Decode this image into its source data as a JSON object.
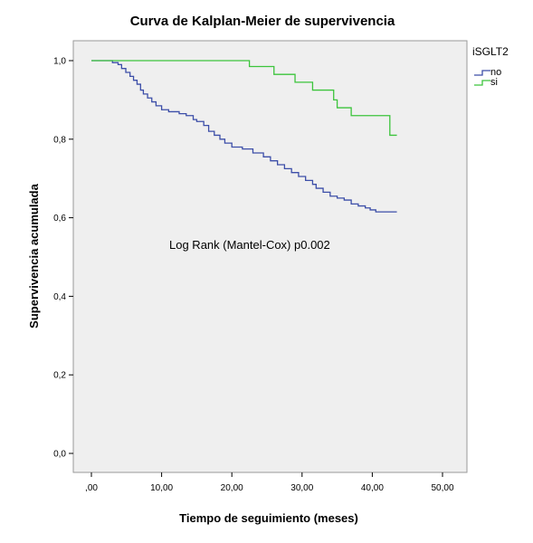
{
  "chart_data": {
    "type": "line",
    "title": "Curva de Kalplan-Meier de supervivencia",
    "xlabel": "Tiempo de seguimiento (meses)",
    "ylabel": "Supervivencia acumulada",
    "xlim": [
      0,
      50
    ],
    "ylim": [
      0,
      1
    ],
    "x_ticks": [
      ",00",
      "10,00",
      "20,00",
      "30,00",
      "40,00",
      "50,00"
    ],
    "y_ticks": [
      "0,0",
      "0,2",
      "0,4",
      "0,6",
      "0,8",
      "1,0"
    ],
    "grid": false,
    "legend": {
      "title": "iSGLT2",
      "placement": "top-right"
    },
    "annotation": "Log Rank (Mantel-Cox) p0.002",
    "colors": {
      "plot_bg": "#efefef",
      "no": "#3c4ea8",
      "si": "#3cc43c"
    },
    "series": [
      {
        "name": "no",
        "x": [
          0,
          3,
          3.8,
          4.3,
          4.9,
          5.5,
          6.0,
          6.5,
          7.0,
          7.4,
          8.0,
          8.6,
          9.2,
          10.0,
          11.0,
          12.5,
          13.5,
          14.5,
          15.0,
          16.0,
          16.7,
          17.5,
          18.3,
          19.0,
          20.0,
          21.5,
          23.0,
          24.5,
          25.5,
          26.5,
          27.5,
          28.5,
          29.5,
          30.5,
          31.5,
          32.0,
          33.0,
          34.0,
          35.0,
          36.0,
          37.0,
          38.0,
          39.0,
          39.7,
          40.5,
          43.5
        ],
        "y": [
          1.0,
          0.995,
          0.99,
          0.98,
          0.97,
          0.96,
          0.95,
          0.94,
          0.925,
          0.915,
          0.905,
          0.895,
          0.885,
          0.875,
          0.87,
          0.865,
          0.86,
          0.85,
          0.845,
          0.835,
          0.82,
          0.81,
          0.8,
          0.79,
          0.78,
          0.775,
          0.765,
          0.755,
          0.745,
          0.735,
          0.725,
          0.715,
          0.705,
          0.695,
          0.685,
          0.675,
          0.665,
          0.655,
          0.65,
          0.645,
          0.635,
          0.63,
          0.625,
          0.62,
          0.615,
          0.615
        ]
      },
      {
        "name": "si",
        "x": [
          0,
          22.5,
          26.0,
          29.0,
          31.5,
          34.5,
          35.0,
          37.0,
          42.5,
          43.5
        ],
        "y": [
          1.0,
          0.985,
          0.965,
          0.945,
          0.925,
          0.9,
          0.88,
          0.86,
          0.81,
          0.81
        ]
      }
    ]
  }
}
